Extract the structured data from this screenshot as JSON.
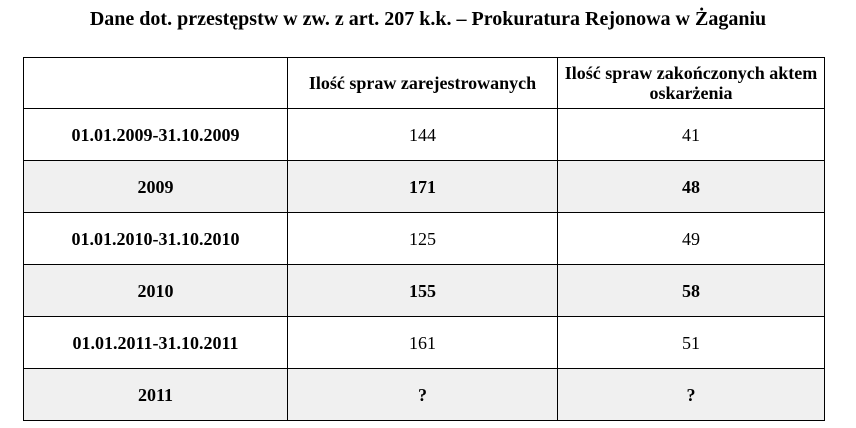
{
  "title": "Dane dot. przestępstw w zw. z art. 207 k.k. – Prokuratura Rejonowa w Żaganiu",
  "table": {
    "header": {
      "corner": "",
      "col_registered": "Ilość spraw zarejestrowanych",
      "col_indicted": "Ilość spraw zakończonych aktem oskarżenia"
    },
    "rows": [
      {
        "period": "01.01.2009-31.10.2009",
        "registered": "144",
        "indicted": "41",
        "shaded": false
      },
      {
        "period": "2009",
        "registered": "171",
        "indicted": "48",
        "shaded": true
      },
      {
        "period": "01.01.2010-31.10.2010",
        "registered": "125",
        "indicted": "49",
        "shaded": false
      },
      {
        "period": "2010",
        "registered": "155",
        "indicted": "58",
        "shaded": true
      },
      {
        "period": "01.01.2011-31.10.2011",
        "registered": "161",
        "indicted": "51",
        "shaded": false
      },
      {
        "period": "2011",
        "registered": "?",
        "indicted": "?",
        "shaded": true
      }
    ]
  },
  "colors": {
    "shaded_row": "#f0f0f0",
    "border": "#000000"
  }
}
